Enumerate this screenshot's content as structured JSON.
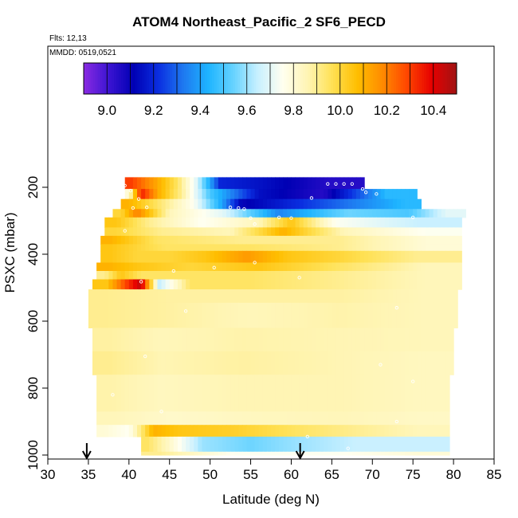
{
  "chart_data": {
    "type": "heatmap",
    "title": "ATOM4 Northeast_Pacific_2 SF6_PECD",
    "annotations": [
      "Flts: 12,13",
      "MMDD: 0519,0521"
    ],
    "xlabel": "Latitude (deg N)",
    "ylabel": "PSXC (mbar)",
    "xlim": [
      30,
      85
    ],
    "ylim": [
      1000,
      0
    ],
    "xticks": [
      30,
      35,
      40,
      45,
      50,
      55,
      60,
      65,
      70,
      75,
      80,
      85
    ],
    "yticks": [
      200,
      400,
      600,
      800,
      1000
    ],
    "colorbar": {
      "range": [
        8.9,
        10.5
      ],
      "ticks": [
        9.0,
        9.2,
        9.4,
        9.6,
        9.8,
        10.0,
        10.2,
        10.4
      ],
      "colors": [
        "#8a2be2",
        "#3c14d2",
        "#0000b4",
        "#0a2ee0",
        "#1e78f0",
        "#1eb4ff",
        "#64d2ff",
        "#c8f0ff",
        "#fffff0",
        "#fff5b4",
        "#ffe155",
        "#ffbe00",
        "#ff8c00",
        "#ff4600",
        "#e60000",
        "#a01414"
      ]
    },
    "bands": [
      {
        "p": [
          170,
          205
        ],
        "segments": [
          [
            39.5,
            41,
            10.3
          ],
          [
            41,
            45,
            10.15
          ],
          [
            45,
            47,
            9.95
          ],
          [
            47,
            49.5,
            9.7
          ],
          [
            49.5,
            53,
            9.2
          ],
          [
            53,
            60,
            9.15
          ],
          [
            60,
            69,
            9.05
          ]
        ]
      },
      {
        "p": [
          205,
          235
        ],
        "segments": [
          [
            39.5,
            40.5,
            9.8
          ],
          [
            40.5,
            42.5,
            10.35
          ],
          [
            42.5,
            45,
            10.1
          ],
          [
            45,
            48,
            9.9
          ],
          [
            48,
            52,
            9.5
          ],
          [
            52,
            60,
            9.15
          ],
          [
            60,
            68,
            9.05
          ],
          [
            68,
            75.5,
            9.45
          ]
        ]
      },
      {
        "p": [
          235,
          265
        ],
        "segments": [
          [
            39,
            41,
            10.1
          ],
          [
            41,
            46,
            9.95
          ],
          [
            46,
            50,
            9.75
          ],
          [
            50,
            53,
            9.4
          ],
          [
            53,
            55,
            9.1
          ],
          [
            55,
            65,
            9.2
          ],
          [
            65,
            72,
            9.35
          ],
          [
            72,
            76,
            9.45
          ]
        ]
      },
      {
        "p": [
          265,
          290
        ],
        "segments": [
          [
            38,
            40,
            10.0
          ],
          [
            40,
            42,
            10.2
          ],
          [
            42,
            48,
            9.85
          ],
          [
            48,
            55,
            9.7
          ],
          [
            55,
            62,
            9.35
          ],
          [
            62,
            72,
            9.55
          ],
          [
            72,
            77,
            9.5
          ],
          [
            77,
            81.5,
            9.7
          ]
        ]
      },
      {
        "p": [
          290,
          320
        ],
        "segments": [
          [
            37,
            40,
            10.05
          ],
          [
            40,
            45,
            9.9
          ],
          [
            45,
            53,
            9.75
          ],
          [
            53,
            59,
            9.85
          ],
          [
            59,
            61,
            10.05
          ],
          [
            61,
            70,
            9.75
          ],
          [
            70,
            81,
            9.65
          ]
        ]
      },
      {
        "p": [
          320,
          345
        ],
        "segments": [
          [
            37,
            40,
            10.0
          ],
          [
            40,
            48,
            9.9
          ],
          [
            48,
            57,
            9.85
          ],
          [
            57,
            61,
            10.1
          ],
          [
            61,
            72,
            9.85
          ],
          [
            72,
            81,
            9.75
          ]
        ]
      },
      {
        "p": [
          345,
          370
        ],
        "segments": [
          [
            36.5,
            39,
            10.1
          ],
          [
            39,
            48,
            9.95
          ],
          [
            48,
            60,
            9.9
          ],
          [
            60,
            72,
            9.9
          ],
          [
            72,
            81,
            9.8
          ]
        ]
      },
      {
        "p": [
          370,
          390
        ],
        "segments": [
          [
            36.5,
            39,
            10.05
          ],
          [
            39,
            50,
            9.95
          ],
          [
            50,
            60,
            9.95
          ],
          [
            60,
            72,
            9.9
          ],
          [
            72,
            81,
            9.8
          ]
        ]
      },
      {
        "p": [
          390,
          425
        ],
        "segments": [
          [
            36.5,
            39,
            10.05
          ],
          [
            39,
            43,
            10.0
          ],
          [
            43,
            47,
            10.0
          ],
          [
            47,
            52,
            10.05
          ],
          [
            52,
            57,
            10.15
          ],
          [
            57,
            62,
            10.05
          ],
          [
            62,
            70,
            10.0
          ],
          [
            70,
            81,
            9.9
          ]
        ]
      },
      {
        "p": [
          425,
          450
        ],
        "segments": [
          [
            36,
            39,
            10.1
          ],
          [
            39,
            43,
            10.05
          ],
          [
            43,
            52,
            10.0
          ],
          [
            52,
            60,
            10.05
          ],
          [
            60,
            72,
            9.95
          ],
          [
            72,
            81,
            9.85
          ]
        ]
      },
      {
        "p": [
          450,
          475
        ],
        "segments": [
          [
            36,
            38,
            9.9
          ],
          [
            38,
            40,
            10.05
          ],
          [
            40,
            43,
            9.95
          ],
          [
            43,
            50,
            9.95
          ],
          [
            50,
            60,
            9.95
          ],
          [
            60,
            72,
            9.9
          ],
          [
            72,
            81,
            9.85
          ]
        ]
      },
      {
        "p": [
          475,
          505
        ],
        "segments": [
          [
            35.5,
            39,
            10.05
          ],
          [
            39,
            40.5,
            10.3
          ],
          [
            40.5,
            42.5,
            10.45
          ],
          [
            42.5,
            45,
            9.65
          ],
          [
            45,
            50,
            9.95
          ],
          [
            50,
            60,
            9.95
          ],
          [
            60,
            72,
            9.9
          ],
          [
            72,
            81,
            9.85
          ]
        ]
      },
      {
        "p": [
          505,
          545
        ],
        "segments": [
          [
            35,
            40,
            9.9
          ],
          [
            40,
            50,
            9.88
          ],
          [
            50,
            60,
            9.88
          ],
          [
            60,
            72,
            9.88
          ],
          [
            72,
            80.5,
            9.85
          ]
        ]
      },
      {
        "p": [
          545,
          620
        ],
        "segments": [
          [
            35,
            40,
            9.9
          ],
          [
            40,
            50,
            9.88
          ],
          [
            50,
            60,
            9.85
          ],
          [
            60,
            72,
            9.87
          ],
          [
            72,
            80.5,
            9.85
          ]
        ]
      },
      {
        "p": [
          620,
          690
        ],
        "segments": [
          [
            35.5,
            40,
            9.88
          ],
          [
            40,
            48,
            9.85
          ],
          [
            48,
            60,
            9.87
          ],
          [
            60,
            72,
            9.86
          ],
          [
            72,
            80,
            9.85
          ]
        ]
      },
      {
        "p": [
          690,
          760
        ],
        "segments": [
          [
            35.5,
            40,
            9.9
          ],
          [
            40,
            48,
            9.86
          ],
          [
            48,
            60,
            9.88
          ],
          [
            60,
            72,
            9.86
          ],
          [
            72,
            80,
            9.84
          ]
        ]
      },
      {
        "p": [
          760,
          870
        ],
        "segments": [
          [
            36,
            40,
            9.87
          ],
          [
            40,
            48,
            9.84
          ],
          [
            48,
            60,
            9.86
          ],
          [
            60,
            72,
            9.86
          ],
          [
            72,
            79.5,
            9.84
          ]
        ]
      },
      {
        "p": [
          870,
          910
        ],
        "segments": [
          [
            36,
            40,
            9.85
          ],
          [
            40,
            50,
            9.82
          ],
          [
            50,
            60,
            9.84
          ],
          [
            60,
            72,
            9.85
          ],
          [
            72,
            79.5,
            9.83
          ]
        ]
      },
      {
        "p": [
          910,
          945
        ],
        "segments": [
          [
            36,
            38,
            9.8
          ],
          [
            38,
            42,
            9.75
          ],
          [
            42,
            44,
            10.1
          ],
          [
            44,
            48,
            10.05
          ],
          [
            48,
            58,
            10.02
          ],
          [
            58,
            64,
            9.95
          ],
          [
            64,
            72,
            9.9
          ],
          [
            72,
            79.5,
            9.85
          ]
        ]
      },
      {
        "p": [
          945,
          990
        ],
        "segments": [
          [
            41.5,
            43,
            9.95
          ],
          [
            43,
            46,
            9.85
          ],
          [
            46,
            52,
            9.6
          ],
          [
            52,
            58,
            9.55
          ],
          [
            58,
            64,
            9.6
          ],
          [
            64,
            72,
            9.65
          ],
          [
            72,
            79.5,
            9.65
          ]
        ]
      },
      {
        "p": [
          990,
          1000
        ],
        "segments": [
          [
            41.5,
            46,
            9.9
          ],
          [
            46,
            60,
            9.75
          ],
          [
            60,
            72,
            9.75
          ],
          [
            72,
            79.5,
            9.8
          ]
        ]
      }
    ],
    "arrows_lat": [
      34.8,
      61.1
    ],
    "points": [
      [
        39.5,
        195
      ],
      [
        40.2,
        210
      ],
      [
        41.2,
        235
      ],
      [
        42.2,
        260
      ],
      [
        40.5,
        262
      ],
      [
        52.5,
        260
      ],
      [
        53.5,
        262
      ],
      [
        54.2,
        265
      ],
      [
        55,
        292
      ],
      [
        55.5,
        310
      ],
      [
        58.5,
        290
      ],
      [
        60,
        292
      ],
      [
        64.5,
        190
      ],
      [
        65.5,
        190
      ],
      [
        66.5,
        190
      ],
      [
        67.5,
        190
      ],
      [
        68.8,
        205
      ],
      [
        69.2,
        215
      ],
      [
        70.5,
        220
      ],
      [
        62.5,
        232
      ],
      [
        75,
        290
      ],
      [
        39.5,
        330
      ],
      [
        41.5,
        482
      ],
      [
        45.5,
        450
      ],
      [
        50.5,
        440
      ],
      [
        55.5,
        425
      ],
      [
        61,
        470
      ],
      [
        47,
        570
      ],
      [
        73,
        560
      ],
      [
        42,
        705
      ],
      [
        71,
        730
      ],
      [
        75,
        780
      ],
      [
        38,
        820
      ],
      [
        44,
        870
      ],
      [
        73,
        900
      ],
      [
        62,
        945
      ],
      [
        67,
        980
      ]
    ]
  }
}
